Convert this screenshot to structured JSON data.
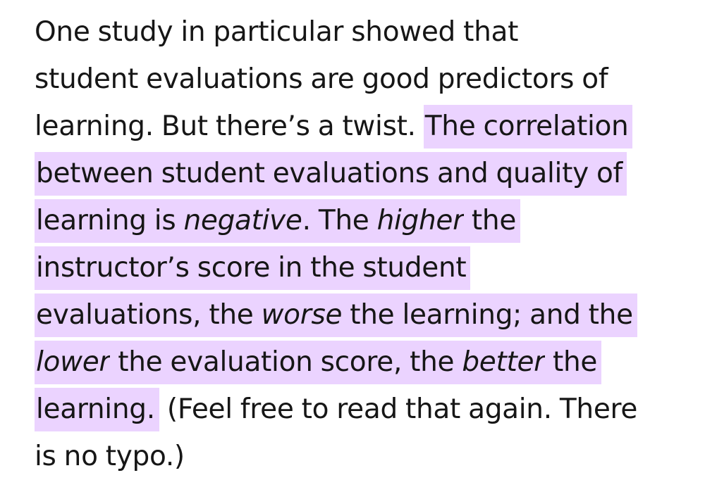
{
  "article": {
    "lines": [
      [
        {
          "text": "One study in particular showed that",
          "highlight": false,
          "italic": false
        }
      ],
      [
        {
          "text": "student evaluations are good predictors of",
          "highlight": false,
          "italic": false
        }
      ],
      [
        {
          "text": "learning. But there’s a twist. ",
          "highlight": false,
          "italic": false
        },
        {
          "text": "The correlation",
          "highlight": true,
          "italic": false
        }
      ],
      [
        {
          "text": "between student evaluations and quality of",
          "highlight": true,
          "italic": false
        }
      ],
      [
        {
          "text": "learning is ",
          "highlight": true,
          "italic": false
        },
        {
          "text": "negative",
          "highlight": true,
          "italic": true
        },
        {
          "text": ". The ",
          "highlight": true,
          "italic": false
        },
        {
          "text": "higher",
          "highlight": true,
          "italic": true
        },
        {
          "text": " the",
          "highlight": true,
          "italic": false
        }
      ],
      [
        {
          "text": "instructor’s score in the student",
          "highlight": true,
          "italic": false
        }
      ],
      [
        {
          "text": "evaluations, the ",
          "highlight": true,
          "italic": false
        },
        {
          "text": "worse",
          "highlight": true,
          "italic": true
        },
        {
          "text": " the learning; and the",
          "highlight": true,
          "italic": false
        }
      ],
      [
        {
          "text": "lower",
          "highlight": true,
          "italic": true
        },
        {
          "text": " the evaluation score, the ",
          "highlight": true,
          "italic": false
        },
        {
          "text": "better",
          "highlight": true,
          "italic": true
        },
        {
          "text": " the",
          "highlight": true,
          "italic": false
        }
      ],
      [
        {
          "text": "learning.",
          "highlight": true,
          "italic": false
        },
        {
          "text": " (Feel free to read that again. There",
          "highlight": false,
          "italic": false
        }
      ],
      [
        {
          "text": "is no typo.)",
          "highlight": false,
          "italic": false
        }
      ]
    ]
  },
  "colors": {
    "text": "#161616",
    "highlight": "#ebd3ff",
    "background": "#ffffff"
  }
}
